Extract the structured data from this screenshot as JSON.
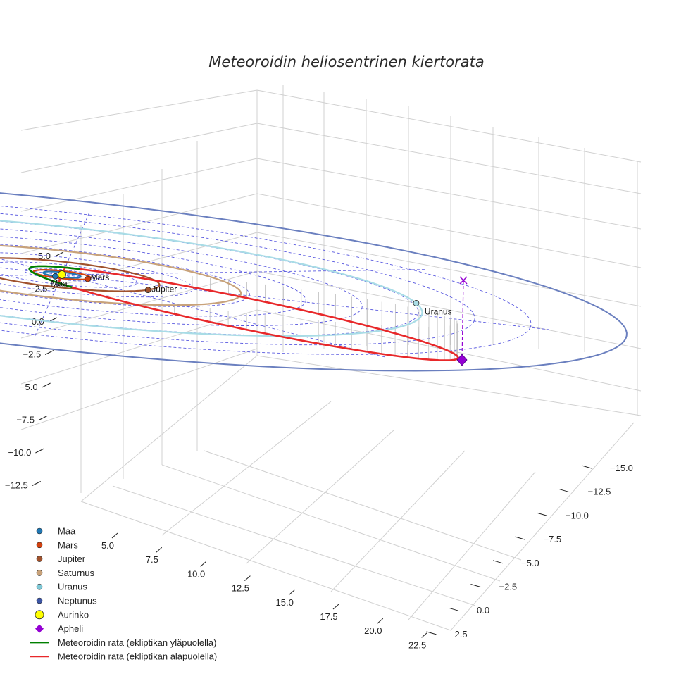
{
  "chart_data": {
    "type": "3d-line",
    "title": "Meteoroidin heliosentrinen kiertorata",
    "axes": {
      "z_ticks": [
        "5.0",
        "2.5",
        "0.0",
        "−2.5",
        "−5.0",
        "−7.5",
        "−10.0",
        "−12.5"
      ],
      "x_ticks": [
        "5.0",
        "7.5",
        "10.0",
        "12.5",
        "15.0",
        "17.5",
        "20.0",
        "22.5"
      ],
      "y_ticks": [
        "−15.0",
        "−12.5",
        "−10.0",
        "−7.5",
        "−5.0",
        "−2.5",
        "0.0",
        "2.5"
      ]
    },
    "planets": [
      {
        "name": "Maa",
        "label": "Maa",
        "a_au": 1.0,
        "color": "#1f77b4"
      },
      {
        "name": "Mars",
        "label": "Mars",
        "a_au": 1.52,
        "color": "#d2410f"
      },
      {
        "name": "Jupiter",
        "label": "Jupiter",
        "a_au": 5.2,
        "color": "#a0522d"
      },
      {
        "name": "Saturnus",
        "label": "",
        "a_au": 9.54,
        "color": "#c8a27a"
      },
      {
        "name": "Uranus",
        "label": "Uranus",
        "a_au": 19.2,
        "color": "#a9dce6"
      },
      {
        "name": "Neptunus",
        "label": "",
        "a_au": 30.1,
        "color": "#6a7fbf"
      }
    ],
    "sun": {
      "name": "Aurinko",
      "color": "#ffff00"
    },
    "aphelion": {
      "name": "Apheli",
      "color": "#9400d3"
    },
    "meteoroid_orbit": {
      "above_ecliptic": {
        "name": "Meteoroidin rata (ekliptikan yläpuolella)",
        "color": "#008000"
      },
      "below_ecliptic": {
        "name": "Meteoroidin rata (ekliptikan alapuolella)",
        "color": "#e8282a"
      }
    },
    "legend": [
      {
        "label": "Maa",
        "kind": "dot",
        "color": "#1f77b4"
      },
      {
        "label": "Mars",
        "kind": "dot",
        "color": "#d2410f"
      },
      {
        "label": "Jupiter",
        "kind": "dot",
        "color": "#a0522d"
      },
      {
        "label": "Saturnus",
        "kind": "dot",
        "color": "#c8a27a"
      },
      {
        "label": "Uranus",
        "kind": "dot",
        "color": "#7ec8d6"
      },
      {
        "label": "Neptunus",
        "kind": "dot",
        "color": "#3c55a5"
      },
      {
        "label": "Aurinko",
        "kind": "sun",
        "color": "#ffff00"
      },
      {
        "label": "Apheli",
        "kind": "diamond",
        "color": "#9400d3"
      },
      {
        "label": "Meteoroidin rata (ekliptikan yläpuolella)",
        "kind": "line",
        "color": "#008000"
      },
      {
        "label": "Meteoroidin rata (ekliptikan alapuolella)",
        "kind": "line",
        "color": "#e8282a"
      }
    ]
  }
}
